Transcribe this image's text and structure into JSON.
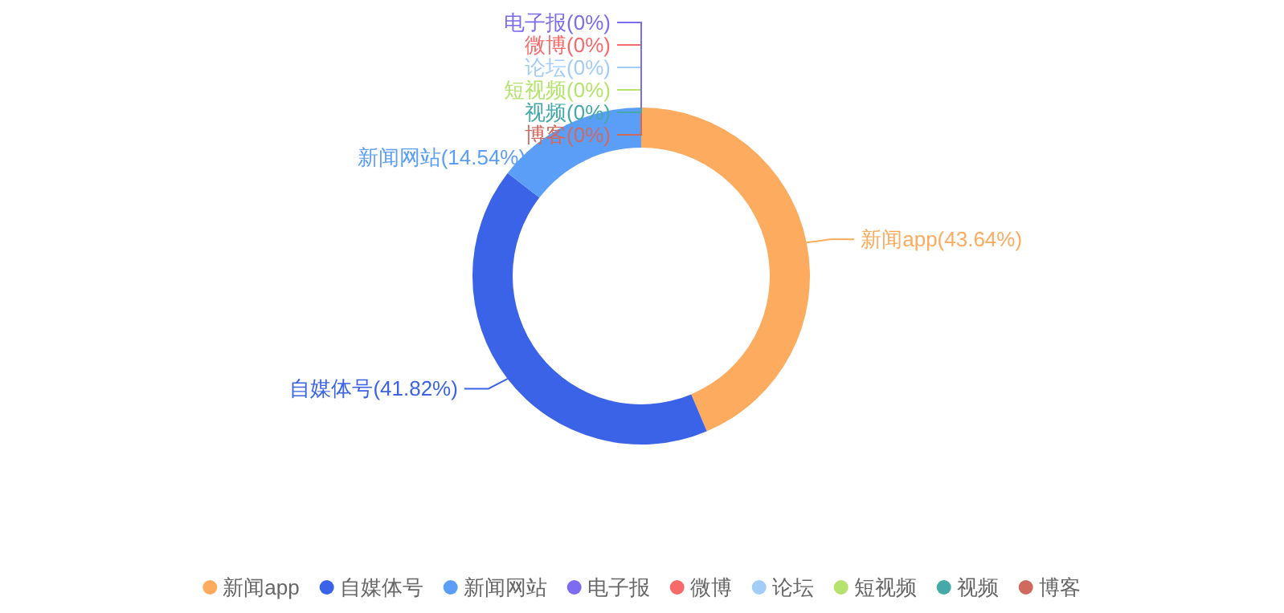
{
  "chart_data": {
    "type": "donut",
    "legend": "bottom",
    "categories": [
      "新闻app",
      "自媒体号",
      "新闻网站",
      "电子报",
      "微博",
      null,
      "论坛",
      "短视频",
      "视频",
      "博客"
    ],
    "values": [
      43.64,
      41.82,
      14.54,
      0,
      0,
      0,
      0,
      0,
      0,
      0
    ],
    "value_labels": [
      "(43.64%)",
      "(41.82%)",
      "(14.54%)",
      "(0%)",
      "(0%)",
      null,
      "(0%)",
      "(0%)",
      "(0%)",
      "(0%)"
    ],
    "colors": [
      "#fdab5e",
      "#3b63e8",
      "#5b9ef8",
      "#7c6cf0",
      "#f66a6a",
      "#4fc76e",
      "#a3cdf7",
      "#b5e36d",
      "#44a9a8",
      "#d06a5f"
    ]
  }
}
